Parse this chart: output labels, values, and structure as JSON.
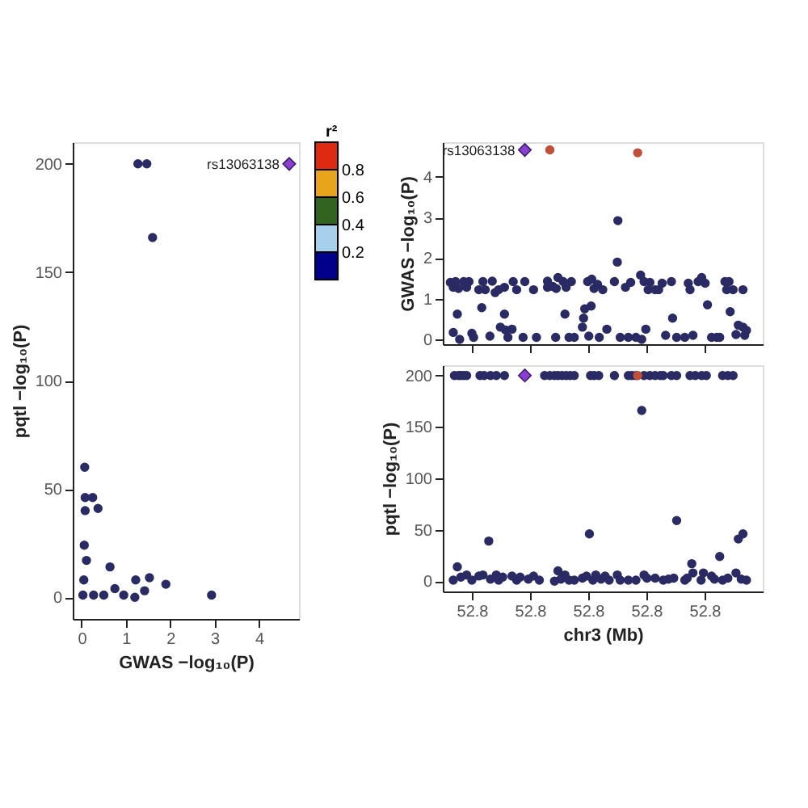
{
  "chart_data": [
    {
      "type": "scatter",
      "xlabel": "GWAS −log₁₀(P)",
      "ylabel": "pqtl −log₁₀(P)",
      "xlim": [
        -0.2,
        4.9
      ],
      "xticks": [
        0,
        1,
        2,
        3,
        4
      ],
      "ylim": [
        -10,
        210
      ],
      "yticks": [
        0,
        50,
        100,
        150,
        200
      ],
      "legend": false,
      "clabel": "r²",
      "clim": [
        0,
        1
      ],
      "cticks": [
        0.2,
        0.4,
        0.6,
        0.8
      ],
      "colors": [
        "#00008b",
        "#a6d0ec",
        "#33641f",
        "#e8a51c",
        "#dd2a10"
      ],
      "series": [
        {
          "color": "#2a2a64",
          "marker": "circle",
          "x": [
            0.07,
            0.08,
            0.08,
            0.25,
            0.37,
            0.06,
            0.11,
            0.64,
            0.05,
            0.03,
            0.27,
            0.5,
            0.75,
            0.95,
            1.2,
            1.22,
            1.42,
            1.53,
            1.9,
            2.93,
            1.27,
            1.47,
            1.6
          ],
          "values": [
            60,
            46,
            40,
            46,
            41,
            24,
            17,
            14,
            8,
            1,
            1,
            1,
            4,
            1,
            0,
            8,
            3,
            9,
            6,
            1,
            200,
            200,
            166
          ]
        },
        {
          "color": "#8a3fd1",
          "marker": "diamond",
          "x": [
            4.68
          ],
          "values": [
            200
          ]
        }
      ],
      "annotations": [
        {
          "text": "rs13063138",
          "x": 4.68,
          "y": 200
        }
      ]
    },
    {
      "type": "scatter",
      "ylabel": "GWAS −log₁₀(P)",
      "xlim": [
        52.755,
        52.81
      ],
      "xticks": [
        {
          "value": 52.76,
          "label": null
        },
        {
          "value": 52.77,
          "label": null
        },
        {
          "value": 52.78,
          "label": null
        },
        {
          "value": 52.79,
          "label": null
        },
        {
          "value": 52.8,
          "label": null
        }
      ],
      "ylim": [
        -0.12,
        4.85
      ],
      "yticks": [
        0,
        1,
        2,
        3,
        4
      ],
      "tick_labels": "y",
      "legend": false,
      "series": [
        {
          "color": "#2a2a64",
          "marker": "circle",
          "x": [
            52.7568,
            52.7575,
            52.7579,
            52.7563,
            52.7568,
            52.7572,
            52.7577,
            52.7586,
            52.7591,
            52.7595,
            52.76,
            52.7603,
            52.7612,
            52.7617,
            52.7619,
            52.7623,
            52.7631,
            52.7635,
            52.764,
            52.7646,
            52.7649,
            52.7656,
            52.7656,
            52.7658,
            52.7662,
            52.7669,
            52.7671,
            52.7677,
            52.7688,
            52.7691,
            52.7706,
            52.7711,
            52.773,
            52.773,
            52.7739,
            52.7744,
            52.7745,
            52.7748,
            52.7757,
            52.776,
            52.7762,
            52.7767,
            52.7771,
            52.7776,
            52.779,
            52.7792,
            52.7794,
            52.7799,
            52.7801,
            52.7805,
            52.7806,
            52.781,
            52.7816,
            52.7819,
            52.7825,
            52.7832,
            52.7845,
            52.785,
            52.7851,
            52.7855,
            52.7864,
            52.7869,
            52.7873,
            52.7882,
            52.789,
            52.7892,
            52.7896,
            52.7899,
            52.7903,
            52.7906,
            52.7915,
            52.7921,
            52.7927,
            52.7933,
            52.7943,
            52.7945,
            52.7952,
            52.7966,
            52.7972,
            52.7975,
            52.798,
            52.7989,
            52.7995,
            52.8001,
            52.8005,
            52.8012,
            52.8021,
            52.8026,
            52.8035,
            52.8038,
            52.8042,
            52.8044,
            52.8049,
            52.8054,
            52.8058,
            52.8066,
            52.8066,
            52.8069,
            52.8072
          ],
          "values": [
            0.17,
            0.62,
            0,
            1.4,
            1.28,
            1.42,
            1.25,
            1.42,
            1.28,
            1.42,
            0.15,
            0.05,
            1.22,
            0.78,
            1.42,
            1.22,
            0.08,
            1.43,
            1.15,
            1.22,
            0.3,
            0.62,
            1.28,
            0.23,
            0.05,
            0.25,
            1.42,
            1.22,
            0.05,
            1.42,
            1.22,
            0.05,
            1.28,
            1.43,
            1.3,
            0.05,
            1.25,
            1.52,
            1.42,
            0.62,
            1.28,
            0.05,
            1.42,
            0.05,
            0.3,
            0.52,
            0.75,
            1.42,
            0.08,
            0.82,
            1.48,
            1.25,
            1.35,
            0.05,
            1.22,
            0.25,
            1.42,
            1.9,
            2.92,
            0.05,
            1.28,
            0.05,
            1.4,
            0.05,
            1.58,
            0,
            1.42,
            0.25,
            1.22,
            1.4,
            1.22,
            1.22,
            1.38,
            0.1,
            1.42,
            0.52,
            0.05,
            0.05,
            1.38,
            1.22,
            0.1,
            1.42,
            1.52,
            1.38,
            0.85,
            0.05,
            0.05,
            0.05,
            1.42,
            1.22,
            1.42,
            0.68,
            1.22,
            0.12,
            0.35,
            1.22,
            0.3,
            0.1,
            0.22
          ]
        },
        {
          "color": "#c0503a",
          "marker": "circle",
          "x": [
            52.7734,
            52.7885
          ],
          "values": [
            4.66,
            4.59
          ]
        },
        {
          "color": "#8a3fd1",
          "marker": "diamond",
          "x": [
            52.7691
          ],
          "values": [
            4.66
          ]
        }
      ],
      "annotations": [
        {
          "text": "rs13063138",
          "x": 52.7691,
          "y": 4.66
        }
      ]
    },
    {
      "type": "scatter",
      "xlabel": "chr3 (Mb)",
      "ylabel": "pqtl −log₁₀(P)",
      "xlim": [
        52.755,
        52.81
      ],
      "xticks": [
        {
          "value": 52.76,
          "label": "52.8"
        },
        {
          "value": 52.77,
          "label": "52.8"
        },
        {
          "value": 52.78,
          "label": "52.8"
        },
        {
          "value": 52.79,
          "label": "52.8"
        },
        {
          "value": 52.8,
          "label": "52.8"
        }
      ],
      "ylim": [
        -10,
        210
      ],
      "yticks": [
        0,
        50,
        100,
        150,
        200
      ],
      "legend": false,
      "series": [
        {
          "color": "#2a2a64",
          "marker": "circle",
          "x": [
            52.757,
            52.7577,
            52.7581,
            52.7586,
            52.7591,
            52.7614,
            52.7621,
            52.7632,
            52.7642,
            52.7656,
            52.7725,
            52.7734,
            52.7742,
            52.7748,
            52.7755,
            52.7762,
            52.7769,
            52.7776,
            52.7804,
            52.781,
            52.7818,
            52.7845,
            52.7869,
            52.7875,
            52.7882,
            52.7896,
            52.7906,
            52.7915,
            52.7924,
            52.7929,
            52.7943,
            52.7952,
            52.7975,
            52.7984,
            52.7995,
            52.8003,
            52.8031,
            52.804,
            52.8049,
            52.7892,
            52.7952,
            52.7802,
            52.7629,
            52.8066,
            52.8058,
            52.8026,
            52.7978,
            52.7575,
            52.7748,
            52.8054,
            52.798,
            52.7998,
            52.7568,
            52.7581,
            52.7591,
            52.76,
            52.7612,
            52.7619,
            52.7632,
            52.7642,
            52.7646,
            52.7653,
            52.7669,
            52.7677,
            52.7683,
            52.7697,
            52.7706,
            52.7716,
            52.7742,
            52.7753,
            52.776,
            52.7767,
            52.7776,
            52.779,
            52.7797,
            52.7808,
            52.7813,
            52.7822,
            52.7829,
            52.7836,
            52.785,
            52.7855,
            52.7869,
            52.7882,
            52.7896,
            52.7901,
            52.7915,
            52.7929,
            52.7938,
            52.7947,
            52.7966,
            52.797,
            52.7994,
            52.8012,
            52.8017,
            52.8031,
            52.804,
            52.8063,
            52.8072
          ],
          "values": [
            200,
            200,
            200,
            200,
            200,
            200,
            200,
            200,
            200,
            200,
            200,
            200,
            200,
            200,
            200,
            200,
            200,
            200,
            200,
            200,
            200,
            200,
            200,
            200,
            200,
            200,
            200,
            200,
            200,
            200,
            200,
            200,
            200,
            200,
            200,
            200,
            200,
            200,
            200,
            166,
            59,
            46,
            39,
            46,
            41,
            24,
            17,
            14,
            10,
            8,
            8,
            8,
            1,
            4,
            6,
            1,
            5,
            6,
            2,
            6,
            1,
            4,
            5,
            1,
            4,
            2,
            5,
            1,
            0,
            2,
            6,
            1,
            1,
            3,
            5,
            1,
            6,
            2,
            5,
            1,
            6,
            1,
            1,
            1,
            6,
            3,
            3,
            1,
            2,
            3,
            1,
            3,
            1,
            5,
            2,
            1,
            3,
            2,
            1
          ]
        },
        {
          "color": "#c0503a",
          "marker": "circle",
          "x": [
            52.7885
          ],
          "values": [
            200
          ]
        },
        {
          "color": "#8a3fd1",
          "marker": "diamond",
          "x": [
            52.7691
          ],
          "values": [
            200
          ]
        }
      ]
    }
  ]
}
